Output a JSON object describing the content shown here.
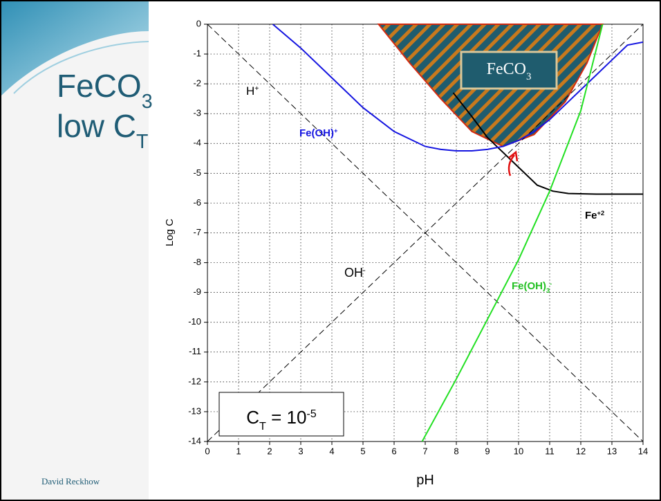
{
  "slide_title": [
    {
      "text": "FeCO",
      "sub": "3"
    },
    {
      "text": "low C",
      "sub": "T"
    }
  ],
  "footer": "David Reckhow",
  "chart_data": {
    "type": "line",
    "xlabel": "pH",
    "ylabel": "Log C",
    "xlim": [
      0,
      14
    ],
    "ylim": [
      -14,
      0
    ],
    "xticks": [
      0,
      1,
      2,
      3,
      4,
      5,
      6,
      7,
      8,
      9,
      10,
      11,
      12,
      13,
      14
    ],
    "yticks": [
      0,
      -1,
      -2,
      -3,
      -4,
      -5,
      -6,
      -7,
      -8,
      -9,
      -10,
      -11,
      -12,
      -13,
      -14
    ],
    "grid": true,
    "region": {
      "x": [
        5.5,
        6.5,
        7.5,
        8.5,
        9.5,
        10.5,
        11.5,
        12.2,
        12.7
      ],
      "values": [
        0,
        -1.3,
        -2.5,
        -3.6,
        -4.1,
        -3.7,
        -2.6,
        -1.3,
        0
      ],
      "color": "#1f5c6e",
      "hatch": "#c8791d",
      "edge": "#d42a10"
    },
    "series": [
      {
        "x": [
          0,
          14
        ],
        "values": [
          0,
          -14
        ],
        "color": "#000000",
        "dashed": true
      },
      {
        "x": [
          0,
          14
        ],
        "values": [
          -14,
          0
        ],
        "color": "#000000",
        "dashed": true
      },
      {
        "x": [
          7.9,
          8.5,
          9.0,
          9.5,
          9.8,
          10.2,
          10.6,
          11.1,
          11.6,
          12.5,
          14
        ],
        "values": [
          -2.3,
          -3.1,
          -3.8,
          -4.3,
          -4.6,
          -5.0,
          -5.4,
          -5.6,
          -5.68,
          -5.7,
          -5.7
        ],
        "color": "#000000",
        "dashed": false
      },
      {
        "x": [
          2.1,
          3,
          4,
          5,
          6,
          7,
          7.5,
          8,
          8.5,
          9,
          9.5,
          10,
          10.5,
          11,
          11.5,
          12,
          12.5,
          13,
          13.5,
          14
        ],
        "values": [
          0,
          -0.8,
          -1.8,
          -2.8,
          -3.6,
          -4.1,
          -4.2,
          -4.25,
          -4.25,
          -4.2,
          -4.1,
          -3.9,
          -3.6,
          -3.2,
          -2.7,
          -2.2,
          -1.7,
          -1.2,
          -0.7,
          -0.6
        ],
        "color": "#1414e0",
        "dashed": false
      },
      {
        "x": [
          6.9,
          8,
          9,
          10,
          11,
          12,
          12.7
        ],
        "values": [
          -14,
          -11.9,
          -9.9,
          -7.9,
          -5.6,
          -2.9,
          0
        ],
        "color": "#22e022",
        "dashed": false
      }
    ],
    "annotations": [
      {
        "parts": [
          {
            "text": "H"
          },
          {
            "sup": "+"
          }
        ],
        "color": "#000000"
      },
      {
        "parts": [
          {
            "text": "Fe(OH)"
          },
          {
            "sup": "+"
          }
        ],
        "color": "#1414e0"
      },
      {
        "parts": [
          {
            "text": "Fe"
          },
          {
            "sup": "+2"
          }
        ],
        "color": "#000000"
      },
      {
        "parts": [
          {
            "text": "OH"
          },
          {
            "sup": "-"
          }
        ],
        "color": "#000000"
      },
      {
        "parts": [
          {
            "text": "Fe(OH)"
          },
          {
            "sub": "3"
          },
          {
            "sup": "-"
          }
        ],
        "color": "#22c022"
      },
      {
        "parts": [
          {
            "text": "FeCO"
          },
          {
            "sub": "3"
          }
        ],
        "color": "#ffffff"
      },
      {
        "parts": [
          {
            "text": "C"
          },
          {
            "sub": "T"
          },
          {
            "text": " = 10"
          },
          {
            "sup": "-5"
          }
        ],
        "color": "#000000"
      }
    ]
  }
}
